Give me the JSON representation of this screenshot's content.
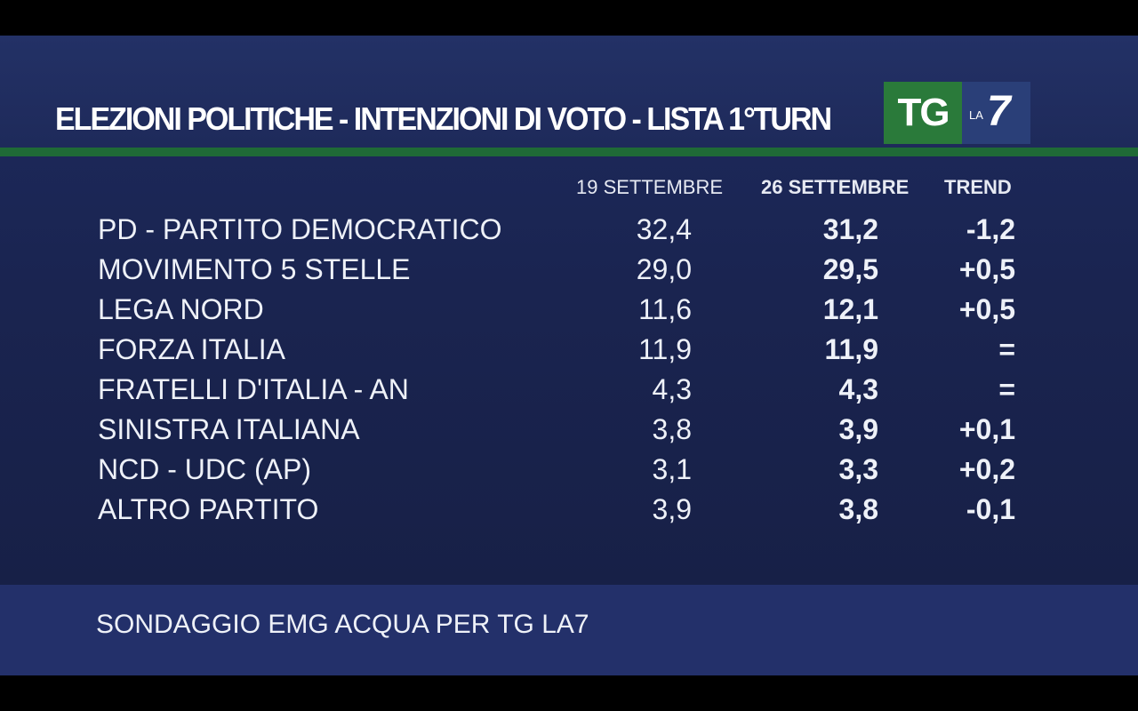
{
  "title": "ELEZIONI POLITICHE - INTENZIONI DI VOTO - LISTA 1°TURN",
  "logo": {
    "tg": "TG",
    "la": "LA",
    "seven": "7"
  },
  "columns": {
    "prev": "19 SETTEMBRE",
    "curr": "26 SETTEMBRE",
    "trend": "TREND"
  },
  "rows": [
    {
      "party": "PD - PARTITO DEMOCRATICO",
      "prev": "32,4",
      "curr": "31,2",
      "trend": "-1,2"
    },
    {
      "party": "MOVIMENTO 5 STELLE",
      "prev": "29,0",
      "curr": "29,5",
      "trend": "+0,5"
    },
    {
      "party": "LEGA NORD",
      "prev": "11,6",
      "curr": "12,1",
      "trend": "+0,5"
    },
    {
      "party": "FORZA ITALIA",
      "prev": "11,9",
      "curr": "11,9",
      "trend": "="
    },
    {
      "party": "FRATELLI D'ITALIA - AN",
      "prev": "4,3",
      "curr": "4,3",
      "trend": "="
    },
    {
      "party": "SINISTRA ITALIANA",
      "prev": "3,8",
      "curr": "3,9",
      "trend": "+0,1"
    },
    {
      "party": "NCD - UDC (AP)",
      "prev": "3,1",
      "curr": "3,3",
      "trend": "+0,2"
    },
    {
      "party": "ALTRO PARTITO",
      "prev": "3,9",
      "curr": "3,8",
      "trend": "-0,1"
    }
  ],
  "source": "SONDAGGIO EMG ACQUA PER TG LA7",
  "colors": {
    "background": "#1a2450",
    "green_accent": "#1f6a36",
    "footer": "#23306a",
    "text": "#eef1f8"
  }
}
